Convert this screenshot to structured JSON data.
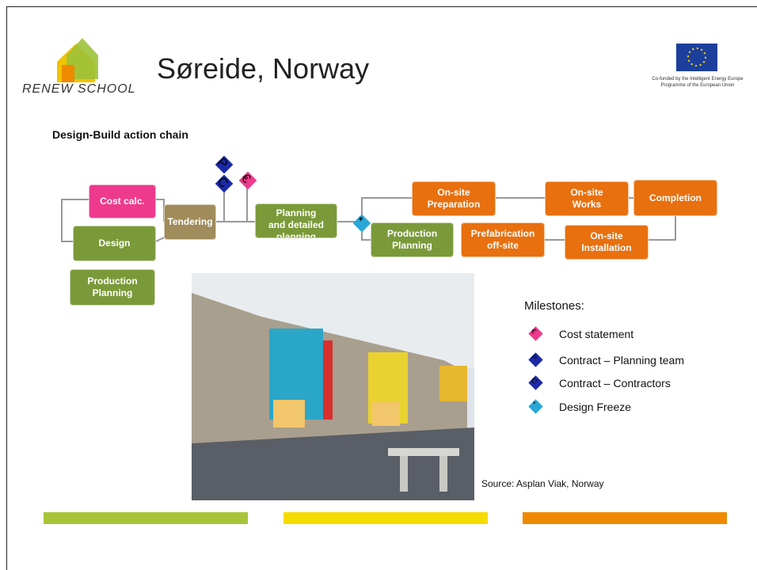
{
  "header": {
    "logo_text": "RENEW SCHOOL",
    "title": "Søreide, Norway",
    "eu_note": [
      "Co-funded by the Intelligent Energy Europe",
      "Programme of the European Union"
    ]
  },
  "section_title": "Design-Build action chain",
  "chain": {
    "boxes": [
      {
        "lines": [
          "Cost calc."
        ]
      },
      {
        "lines": [
          "Tendering"
        ]
      },
      {
        "lines": [
          "Design"
        ]
      },
      {
        "lines": [
          "Production",
          "Planning"
        ]
      },
      {
        "lines": [
          "Planning",
          "and detailed",
          "planning"
        ]
      },
      {
        "lines": [
          "On-site",
          "Preparation"
        ]
      },
      {
        "lines": [
          "Production",
          "Planning"
        ]
      },
      {
        "lines": [
          "Prefabrication",
          "off-site"
        ]
      },
      {
        "lines": [
          "On-site",
          "Works"
        ]
      },
      {
        "lines": [
          "Completion"
        ]
      },
      {
        "lines": [
          "On-site",
          "Installation"
        ]
      }
    ]
  },
  "milestones": {
    "heading": "Milestones:",
    "items": [
      {
        "symbol": "€",
        "label": "Cost statement"
      },
      {
        "symbol": "P",
        "label": "Contract – Planning team"
      },
      {
        "symbol": "C",
        "label": "Contract – Contractors"
      },
      {
        "symbol": "*",
        "label": "Design Freeze"
      }
    ]
  },
  "source": "Source: Asplan Viak, Norway"
}
